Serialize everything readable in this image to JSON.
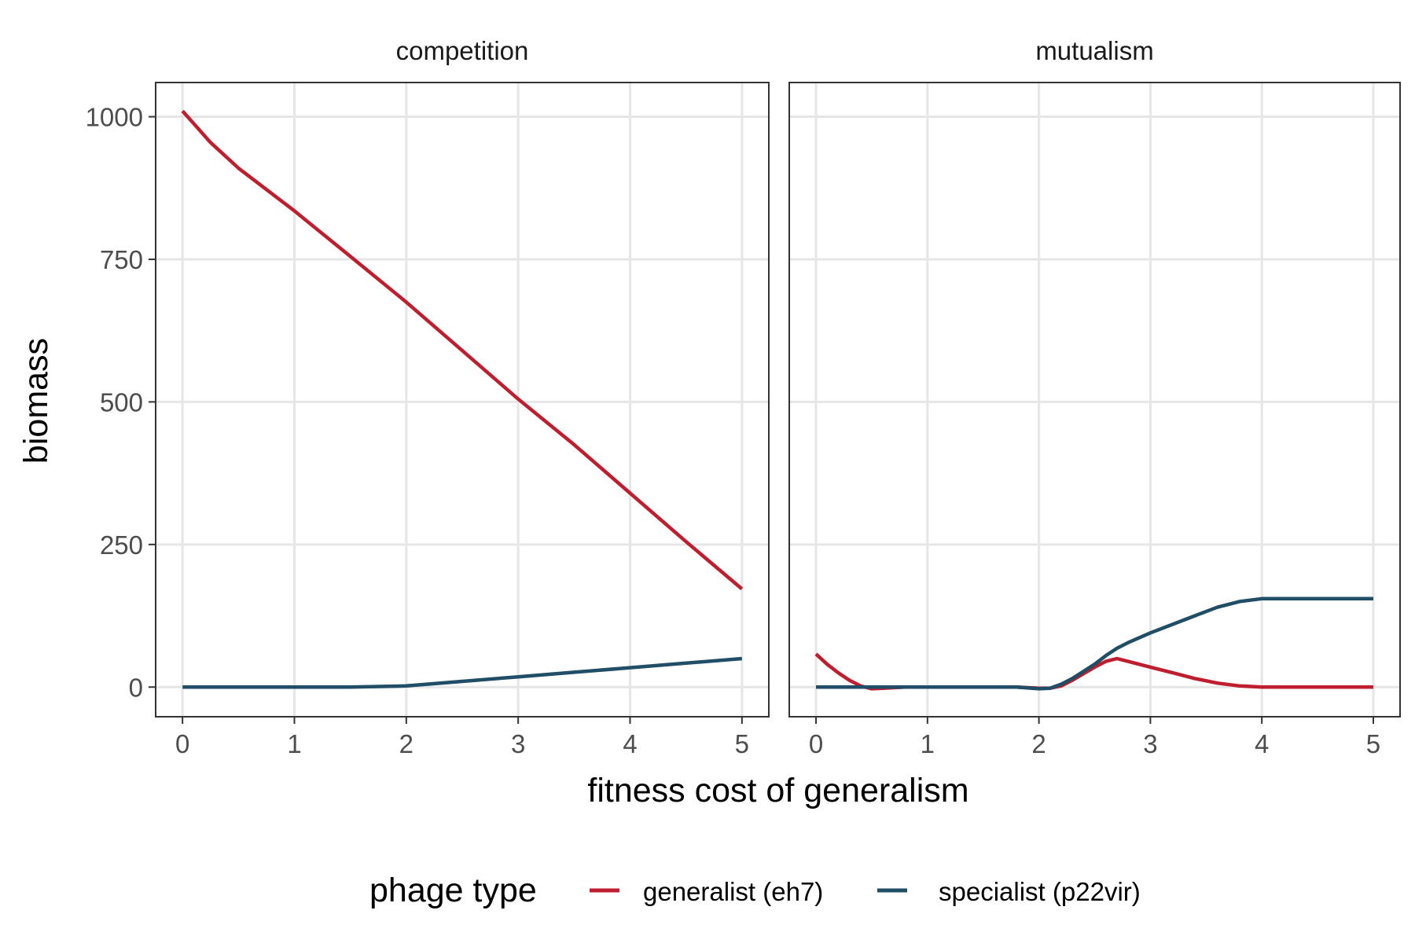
{
  "chart_data": [
    {
      "type": "line",
      "facet": "competition",
      "x": [
        0,
        0.25,
        0.5,
        1,
        1.5,
        2,
        2.5,
        3,
        3.5,
        4,
        4.5,
        5
      ],
      "series": [
        {
          "name": "generalist (eh7)",
          "values": [
            1010,
            955,
            910,
            835,
            755,
            675,
            590,
            505,
            425,
            340,
            255,
            172
          ]
        },
        {
          "name": "specialist (p22vir)",
          "values": [
            0,
            0,
            0,
            0,
            0,
            2,
            10,
            18,
            26,
            34,
            42,
            50
          ]
        }
      ],
      "xlim": [
        -0.24,
        5.24
      ],
      "ylim": [
        -52,
        1060
      ],
      "xticks": [
        "0",
        "1",
        "2",
        "3",
        "4",
        "5"
      ],
      "yticks": [
        "0",
        "250",
        "500",
        "750",
        "1000"
      ],
      "grid": true
    },
    {
      "type": "line",
      "facet": "mutualism",
      "x": [
        0,
        0.1,
        0.2,
        0.3,
        0.4,
        0.5,
        0.6,
        0.8,
        1,
        1.5,
        1.8,
        2,
        2.1,
        2.2,
        2.3,
        2.5,
        2.6,
        2.7,
        2.8,
        3,
        3.2,
        3.4,
        3.6,
        3.8,
        4,
        4.2,
        4.5,
        5
      ],
      "series": [
        {
          "name": "generalist (eh7)",
          "values": [
            58,
            40,
            25,
            12,
            2,
            -3,
            -2,
            0,
            0,
            0,
            0,
            -2,
            -2,
            2,
            12,
            35,
            45,
            50,
            45,
            35,
            25,
            15,
            7,
            2,
            0,
            0,
            0,
            0
          ]
        },
        {
          "name": "specialist (p22vir)",
          "values": [
            0,
            0,
            0,
            0,
            0,
            0,
            0,
            0,
            0,
            0,
            0,
            -3,
            -2,
            5,
            15,
            40,
            55,
            68,
            78,
            95,
            110,
            125,
            140,
            150,
            155,
            155,
            155,
            155
          ]
        }
      ],
      "xlim": [
        -0.24,
        5.24
      ],
      "ylim": [
        -52,
        1060
      ],
      "xticks": [
        "0",
        "1",
        "2",
        "3",
        "4",
        "5"
      ],
      "yticks": [
        "0",
        "250",
        "500",
        "750",
        "1000"
      ],
      "grid": true
    }
  ],
  "xlabel": "fitness cost of generalism",
  "ylabel": "biomass",
  "legend": {
    "title": "phage type",
    "position": "bottom",
    "items": [
      {
        "label": "generalist (eh7)",
        "color": "#BE1E2D"
      },
      {
        "label": "specialist (p22vir)",
        "color": "#1F4E66"
      }
    ]
  }
}
